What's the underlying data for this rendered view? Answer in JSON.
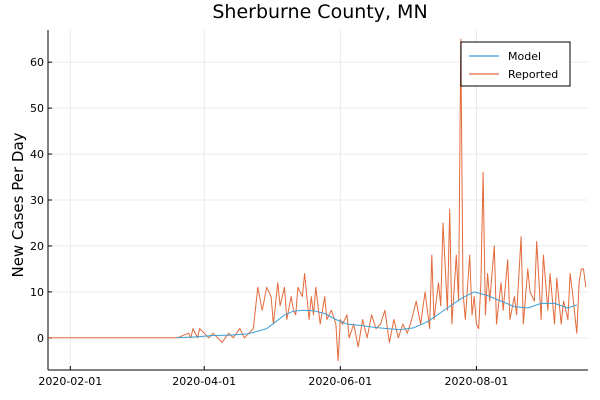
{
  "chart_data": {
    "type": "line",
    "title": "Sherburne County, MN",
    "xlabel": "",
    "ylabel": "New Cases Per Day",
    "xlim": [
      "2020-01-22",
      "2020-09-20"
    ],
    "ylim": [
      -7,
      67
    ],
    "xticks": [
      "2020-02-01",
      "2020-04-01",
      "2020-06-01",
      "2020-08-01"
    ],
    "yticks": [
      0,
      10,
      20,
      30,
      40,
      50,
      60
    ],
    "grid": true,
    "legend_position": "top-right",
    "colors": {
      "Model": "#3b9fd8",
      "Reported": "#e26a3b"
    },
    "series": [
      {
        "name": "Model",
        "x": [
          "2020-03-20",
          "2020-03-28",
          "2020-04-05",
          "2020-04-13",
          "2020-04-21",
          "2020-04-29",
          "2020-05-03",
          "2020-05-07",
          "2020-05-11",
          "2020-05-15",
          "2020-05-20",
          "2020-05-25",
          "2020-05-30",
          "2020-06-04",
          "2020-06-10",
          "2020-06-16",
          "2020-06-22",
          "2020-06-28",
          "2020-07-04",
          "2020-07-10",
          "2020-07-16",
          "2020-07-22",
          "2020-07-26",
          "2020-07-31",
          "2020-08-06",
          "2020-08-12",
          "2020-08-18",
          "2020-08-24",
          "2020-08-30",
          "2020-09-05",
          "2020-09-11",
          "2020-09-15"
        ],
        "values": [
          0,
          0.2,
          0.5,
          0.6,
          0.9,
          2.0,
          3.5,
          5.0,
          5.8,
          6.0,
          5.9,
          5.3,
          4.0,
          3.0,
          2.7,
          2.3,
          2.0,
          1.8,
          2.2,
          3.5,
          5.5,
          7.5,
          8.8,
          10.0,
          9.2,
          8.0,
          6.8,
          6.5,
          7.5,
          7.5,
          6.5,
          7.2
        ]
      },
      {
        "name": "Reported",
        "x": [
          "2020-01-22",
          "2020-03-20",
          "2020-03-25",
          "2020-03-26",
          "2020-03-27",
          "2020-03-29",
          "2020-03-30",
          "2020-04-01",
          "2020-04-03",
          "2020-04-05",
          "2020-04-07",
          "2020-04-09",
          "2020-04-12",
          "2020-04-14",
          "2020-04-17",
          "2020-04-19",
          "2020-04-21",
          "2020-04-23",
          "2020-04-25",
          "2020-04-27",
          "2020-04-29",
          "2020-05-01",
          "2020-05-02",
          "2020-05-04",
          "2020-05-05",
          "2020-05-07",
          "2020-05-08",
          "2020-05-10",
          "2020-05-11",
          "2020-05-12",
          "2020-05-13",
          "2020-05-15",
          "2020-05-16",
          "2020-05-18",
          "2020-05-19",
          "2020-05-20",
          "2020-05-21",
          "2020-05-23",
          "2020-05-25",
          "2020-05-26",
          "2020-05-28",
          "2020-05-30",
          "2020-05-31",
          "2020-06-01",
          "2020-06-02",
          "2020-06-04",
          "2020-06-05",
          "2020-06-07",
          "2020-06-09",
          "2020-06-11",
          "2020-06-13",
          "2020-06-15",
          "2020-06-17",
          "2020-06-19",
          "2020-06-21",
          "2020-06-23",
          "2020-06-25",
          "2020-06-27",
          "2020-06-29",
          "2020-07-01",
          "2020-07-03",
          "2020-07-05",
          "2020-07-07",
          "2020-07-09",
          "2020-07-11",
          "2020-07-12",
          "2020-07-13",
          "2020-07-15",
          "2020-07-16",
          "2020-07-17",
          "2020-07-19",
          "2020-07-20",
          "2020-07-21",
          "2020-07-23",
          "2020-07-24",
          "2020-07-25",
          "2020-07-26",
          "2020-07-27",
          "2020-07-29",
          "2020-07-30",
          "2020-07-31",
          "2020-08-01",
          "2020-08-02",
          "2020-08-03",
          "2020-08-04",
          "2020-08-05",
          "2020-08-06",
          "2020-08-07",
          "2020-08-09",
          "2020-08-10",
          "2020-08-12",
          "2020-08-13",
          "2020-08-15",
          "2020-08-16",
          "2020-08-18",
          "2020-08-19",
          "2020-08-21",
          "2020-08-22",
          "2020-08-24",
          "2020-08-25",
          "2020-08-27",
          "2020-08-28",
          "2020-08-30",
          "2020-08-31",
          "2020-09-02",
          "2020-09-03",
          "2020-09-05",
          "2020-09-06",
          "2020-09-08",
          "2020-09-09",
          "2020-09-11",
          "2020-09-12",
          "2020-09-13",
          "2020-09-15",
          "2020-09-16",
          "2020-09-17",
          "2020-09-18",
          "2020-09-19"
        ],
        "values": [
          0,
          0,
          1,
          0,
          2,
          0,
          2,
          1,
          0,
          1,
          0,
          -1,
          1,
          0,
          2,
          0,
          1,
          2,
          11,
          6,
          11,
          9,
          3,
          12,
          7,
          11,
          4,
          9,
          6,
          5,
          11,
          9,
          14,
          4,
          9,
          5,
          11,
          3,
          9,
          4,
          6,
          3,
          -5,
          4,
          3,
          5,
          0,
          3,
          -2,
          4,
          0,
          5,
          2,
          3,
          6,
          -1,
          4,
          0,
          3,
          1,
          4,
          8,
          3,
          10,
          2,
          18,
          4,
          12,
          7,
          25,
          6,
          28,
          3,
          18,
          8,
          65,
          10,
          4,
          18,
          5,
          9,
          3,
          2,
          12,
          36,
          5,
          14,
          8,
          20,
          3,
          12,
          6,
          17,
          4,
          9,
          5,
          22,
          3,
          15,
          10,
          8,
          21,
          4,
          18,
          6,
          14,
          3,
          13,
          3,
          8,
          4,
          14,
          10,
          1,
          12,
          15,
          15,
          11
        ]
      }
    ]
  }
}
